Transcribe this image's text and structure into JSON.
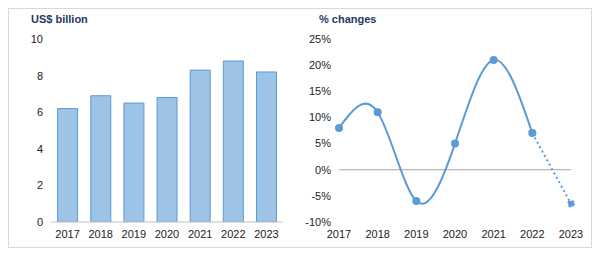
{
  "chart_data": [
    {
      "type": "bar",
      "title": "US$ billion",
      "categories": [
        "2017",
        "2018",
        "2019",
        "2020",
        "2021",
        "2022",
        "2023"
      ],
      "values": [
        6.2,
        6.9,
        6.5,
        6.8,
        8.3,
        8.8,
        8.2
      ],
      "color": "#9dc3e6",
      "ylim": [
        0,
        10
      ],
      "yticks": [
        0,
        2,
        4,
        6,
        8,
        10
      ]
    },
    {
      "type": "line",
      "title": "% changes",
      "categories": [
        "2017",
        "2018",
        "2019",
        "2020",
        "2021",
        "2022",
        "2023"
      ],
      "values": [
        8,
        11,
        -6,
        5,
        21,
        7,
        -6.5
      ],
      "color": "#5b9bd5",
      "marker": "circle",
      "ylim": [
        -10,
        25
      ],
      "yticks": [
        {
          "value": -10,
          "label": "-10%"
        },
        {
          "value": -5,
          "label": "-5%"
        },
        {
          "value": 0,
          "label": "0%"
        },
        {
          "value": 5,
          "label": "5%"
        },
        {
          "value": 10,
          "label": "10%"
        },
        {
          "value": 15,
          "label": "15%"
        },
        {
          "value": 20,
          "label": "20%"
        },
        {
          "value": 25,
          "label": "25%"
        }
      ]
    }
  ]
}
